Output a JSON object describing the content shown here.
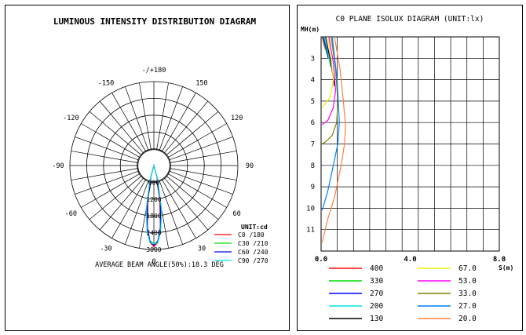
{
  "chart_data": [
    {
      "type": "polar",
      "title": "LUMINOUS INTENSITY DISTRIBUTION DIAGRAM",
      "angle_labels": [
        "-/+180",
        "150",
        "120",
        "90",
        "60",
        "30",
        "0",
        "-30",
        "-60",
        "-90",
        "-120",
        "-150"
      ],
      "angle_values": [
        180,
        150,
        120,
        90,
        60,
        30,
        0,
        -30,
        -60,
        -90,
        -120,
        -150
      ],
      "radial_labels": [
        "600",
        "1200",
        "1800",
        "2400",
        "3000"
      ],
      "radial_values": [
        600,
        1200,
        1800,
        2400,
        3000
      ],
      "rmax": 3000,
      "legend_title": "UNIT:cd",
      "series": [
        {
          "name": "C0  /180",
          "color": "#ff0000",
          "angles": [
            -15,
            -10,
            -6,
            -3,
            0,
            3,
            6,
            10,
            15
          ],
          "values": [
            400,
            1200,
            2200,
            2750,
            2900,
            2750,
            2200,
            1200,
            400
          ]
        },
        {
          "name": "C30 /210",
          "color": "#00dd00",
          "angles": [
            -15,
            -10,
            -6,
            -3,
            0,
            3,
            6,
            10,
            15
          ],
          "values": [
            500,
            1500,
            2300,
            2700,
            2800,
            2700,
            2300,
            1500,
            500
          ]
        },
        {
          "name": "C60 /240",
          "color": "#0000ff",
          "angles": [
            -15,
            -10,
            -6,
            -3,
            0,
            3,
            6,
            10,
            15
          ],
          "values": [
            450,
            1400,
            2250,
            2700,
            2850,
            2700,
            2250,
            1400,
            450
          ]
        },
        {
          "name": "C90 /270",
          "color": "#00e5e5",
          "angles": [
            -15,
            -10,
            -6,
            -3,
            0,
            3,
            6,
            10,
            15
          ],
          "values": [
            550,
            1600,
            2350,
            2750,
            2800,
            2750,
            2350,
            1600,
            550
          ]
        }
      ],
      "beam_angle_text": "AVERAGE BEAM ANGLE(50%):18.3 DEG"
    },
    {
      "type": "line",
      "title": "C0 PLANE ISOLUX DIAGRAM (UNIT:lx)",
      "ylabel": "MH(m)",
      "xlabel": "S(m)",
      "xlim": [
        0,
        8
      ],
      "ylim": [
        2,
        12
      ],
      "x_tick_labels": [
        "0.0",
        "4.0",
        "8.0"
      ],
      "x_tick_values": [
        0,
        4,
        8
      ],
      "y_tick_labels": [
        "3",
        "4",
        "5",
        "6",
        "7",
        "8",
        "9",
        "10",
        "11"
      ],
      "y_tick_values": [
        3,
        4,
        5,
        6,
        7,
        8,
        9,
        10,
        11
      ],
      "grid": true,
      "series": [
        {
          "name": "400",
          "color": "#ff0000",
          "x": [
            0.05,
            0.12,
            0.2
          ],
          "y": [
            2,
            2.3,
            2.6
          ]
        },
        {
          "name": "330",
          "color": "#00dd00",
          "x": [
            0.08,
            0.18,
            0.26
          ],
          "y": [
            2,
            2.4,
            2.8
          ]
        },
        {
          "name": "270",
          "color": "#0000ff",
          "x": [
            0.1,
            0.22,
            0.32
          ],
          "y": [
            2,
            2.5,
            3.0
          ]
        },
        {
          "name": "200",
          "color": "#00e5e5",
          "x": [
            0.14,
            0.3,
            0.42
          ],
          "y": [
            2,
            2.7,
            3.4
          ]
        },
        {
          "name": "130",
          "color": "#000000",
          "x": [
            0.2,
            0.4,
            0.55,
            0.6
          ],
          "y": [
            2,
            3.0,
            3.9,
            4.3
          ]
        },
        {
          "name": "67.0",
          "color": "#f0f000",
          "x": [
            0.3,
            0.45,
            0.55,
            0.42,
            0.05
          ],
          "y": [
            2,
            3.0,
            4.0,
            4.8,
            5.3
          ]
        },
        {
          "name": "53.0",
          "color": "#ff00ff",
          "x": [
            0.35,
            0.55,
            0.65,
            0.55,
            0.3,
            0.05
          ],
          "y": [
            2,
            3.2,
            4.5,
            5.3,
            5.9,
            6.1
          ]
        },
        {
          "name": "33.0",
          "color": "#808000",
          "x": [
            0.45,
            0.65,
            0.75,
            0.7,
            0.5,
            0.2,
            0.05
          ],
          "y": [
            2,
            3.5,
            5.0,
            6.0,
            6.6,
            6.9,
            7.0
          ]
        },
        {
          "name": "27.0",
          "color": "#0080ff",
          "x": [
            0.5,
            0.72,
            0.82,
            0.75,
            0.55,
            0.3,
            0.05
          ],
          "y": [
            2,
            4.0,
            6.0,
            7.0,
            8.0,
            9.2,
            10.1
          ]
        },
        {
          "name": "20.0",
          "color": "#ff8040",
          "x": [
            0.6,
            0.85,
            1.0,
            1.1,
            1.05,
            0.9,
            0.6,
            0.3,
            0.05
          ],
          "y": [
            2,
            3.5,
            5.0,
            6.2,
            7.0,
            8.0,
            9.5,
            10.5,
            11.6
          ]
        }
      ]
    }
  ]
}
